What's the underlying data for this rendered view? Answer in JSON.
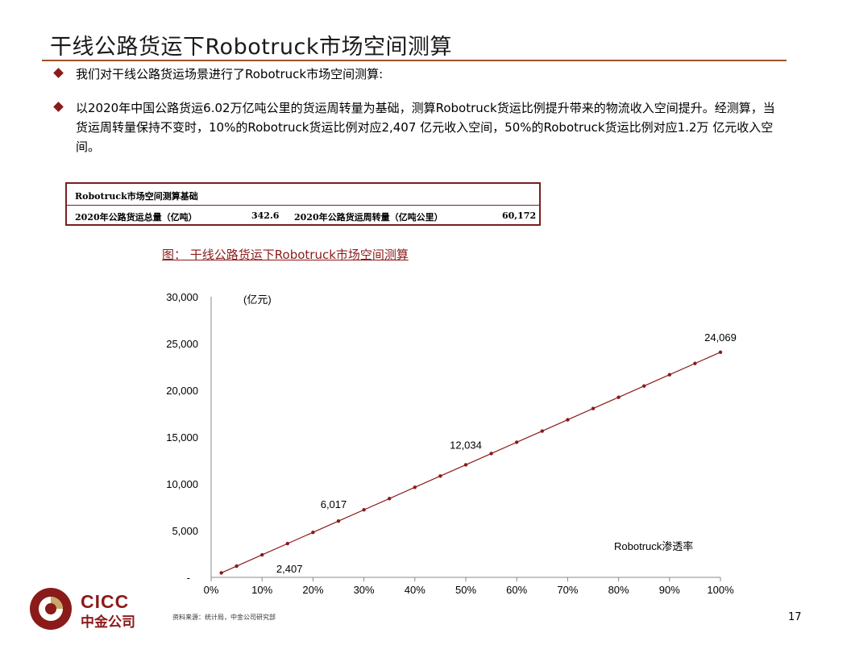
{
  "title": "干线公路货运下Robotruck市场空间测算",
  "bullets": [
    "我们对干线公路货运场景进行了Robotruck市场空间测算:",
    "以2020年中国公路货运6.02万亿吨公里的货运周转量为基础，测算Robotruck货运比例提升带来的物流收入空间提升。经测算，当货运周转量保持不变时，10%的Robotruck货运比例对应2,407 亿元收入空间，50%的Robotruck货运比例对应1.2万 亿元收入空间。"
  ],
  "basis_table": {
    "header": "Robotruck市场空间测算基础",
    "label1": "2020年公路货运总量（亿吨）",
    "value1": "342.6",
    "label2": "2020年公路货运周转量（亿吨公里）",
    "value2": "60,172"
  },
  "figure_caption": "图：  干线公路货运下Robotruck市场空间测算",
  "chart_data": {
    "type": "line",
    "title": "",
    "ylabel": "(亿元)",
    "xlabel": "Robotruck渗透率",
    "x": [
      0.02,
      0.05,
      0.1,
      0.15,
      0.2,
      0.25,
      0.3,
      0.35,
      0.4,
      0.45,
      0.5,
      0.55,
      0.6,
      0.65,
      0.7,
      0.75,
      0.8,
      0.85,
      0.9,
      0.95,
      1.0
    ],
    "series": [
      {
        "values": [
          481,
          1203,
          2407,
          3610,
          4814,
          6017,
          7221,
          8424,
          9628,
          10831,
          12034,
          13238,
          14441,
          15645,
          16848,
          18052,
          19255,
          20459,
          21662,
          22866,
          24069
        ]
      }
    ],
    "data_labels": [
      {
        "x": 0.1,
        "text": "2,407"
      },
      {
        "x": 0.25,
        "text": "6,017"
      },
      {
        "x": 0.5,
        "text": "12,034"
      },
      {
        "x": 1.0,
        "text": "24,069"
      }
    ],
    "xlim": [
      0,
      1
    ],
    "ylim": [
      0,
      30000
    ],
    "x_ticks": [
      "0%",
      "10%",
      "20%",
      "30%",
      "40%",
      "50%",
      "60%",
      "70%",
      "80%",
      "90%",
      "100%"
    ],
    "y_ticks": [
      "-",
      "5,000",
      "10,000",
      "15,000",
      "20,000",
      "25,000",
      "30,000"
    ],
    "line_color": "#8b1a1a",
    "grid": false,
    "legend": "none"
  },
  "footer": {
    "logo_text_en": "CICC",
    "logo_text_cn": "中金公司",
    "source": "资料来源：统计局，中金公司研究部",
    "page": "17"
  }
}
